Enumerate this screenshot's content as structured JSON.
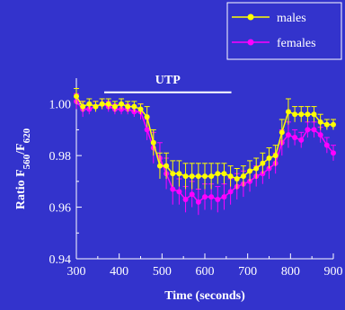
{
  "chart_data": {
    "type": "line",
    "xlabel": "Time (seconds)",
    "ylabel_main": "Ratio F",
    "ylabel_sub1": "560",
    "ylabel_sep": "/F",
    "ylabel_sub2": "620",
    "xlim": [
      300,
      900
    ],
    "ylim": [
      0.94,
      1.01
    ],
    "xticks": [
      300,
      400,
      500,
      600,
      700,
      800,
      900
    ],
    "yticks": [
      0.94,
      0.96,
      0.98,
      1.0
    ],
    "ytick_labels": [
      "0.94",
      "0.96",
      "0.98",
      "1.00"
    ],
    "legend_position": "top-right",
    "annotation": {
      "text": "UTP",
      "x_start": 365,
      "x_end": 662,
      "y": 1.0045
    },
    "x": [
      300,
      315,
      330,
      345,
      360,
      375,
      390,
      405,
      420,
      435,
      450,
      465,
      480,
      495,
      510,
      525,
      540,
      555,
      570,
      585,
      600,
      615,
      630,
      645,
      660,
      675,
      690,
      705,
      720,
      735,
      750,
      765,
      780,
      795,
      810,
      825,
      840,
      855,
      870,
      885,
      900
    ],
    "series": [
      {
        "name": "males",
        "color": "#ffff00",
        "values": [
          1.003,
          0.999,
          1.0,
          0.999,
          1.0,
          1.0,
          0.999,
          1.0,
          0.999,
          0.999,
          0.998,
          0.995,
          0.985,
          0.976,
          0.976,
          0.973,
          0.973,
          0.972,
          0.972,
          0.972,
          0.972,
          0.972,
          0.973,
          0.973,
          0.972,
          0.971,
          0.972,
          0.974,
          0.975,
          0.977,
          0.979,
          0.98,
          0.989,
          0.997,
          0.996,
          0.996,
          0.996,
          0.996,
          0.993,
          0.992,
          0.992
        ],
        "errors": [
          0.003,
          0.002,
          0.002,
          0.002,
          0.002,
          0.002,
          0.002,
          0.002,
          0.002,
          0.002,
          0.002,
          0.004,
          0.005,
          0.005,
          0.005,
          0.005,
          0.005,
          0.005,
          0.005,
          0.005,
          0.005,
          0.005,
          0.004,
          0.004,
          0.004,
          0.004,
          0.004,
          0.004,
          0.004,
          0.004,
          0.004,
          0.004,
          0.005,
          0.005,
          0.003,
          0.003,
          0.003,
          0.003,
          0.003,
          0.002,
          0.002
        ]
      },
      {
        "name": "females",
        "color": "#ff00ff",
        "values": [
          1.001,
          0.998,
          0.998,
          0.999,
          1.0,
          0.999,
          0.998,
          0.998,
          0.998,
          0.997,
          0.997,
          0.99,
          0.983,
          0.979,
          0.973,
          0.967,
          0.966,
          0.963,
          0.965,
          0.962,
          0.964,
          0.964,
          0.963,
          0.964,
          0.966,
          0.968,
          0.969,
          0.97,
          0.972,
          0.973,
          0.975,
          0.977,
          0.985,
          0.988,
          0.987,
          0.986,
          0.99,
          0.99,
          0.988,
          0.984,
          0.981
        ],
        "errors": [
          0.003,
          0.003,
          0.002,
          0.002,
          0.002,
          0.002,
          0.002,
          0.002,
          0.002,
          0.002,
          0.003,
          0.004,
          0.006,
          0.006,
          0.006,
          0.006,
          0.005,
          0.005,
          0.005,
          0.005,
          0.005,
          0.005,
          0.005,
          0.005,
          0.005,
          0.005,
          0.005,
          0.004,
          0.004,
          0.004,
          0.004,
          0.004,
          0.005,
          0.005,
          0.003,
          0.003,
          0.003,
          0.003,
          0.003,
          0.003,
          0.003
        ]
      }
    ]
  }
}
